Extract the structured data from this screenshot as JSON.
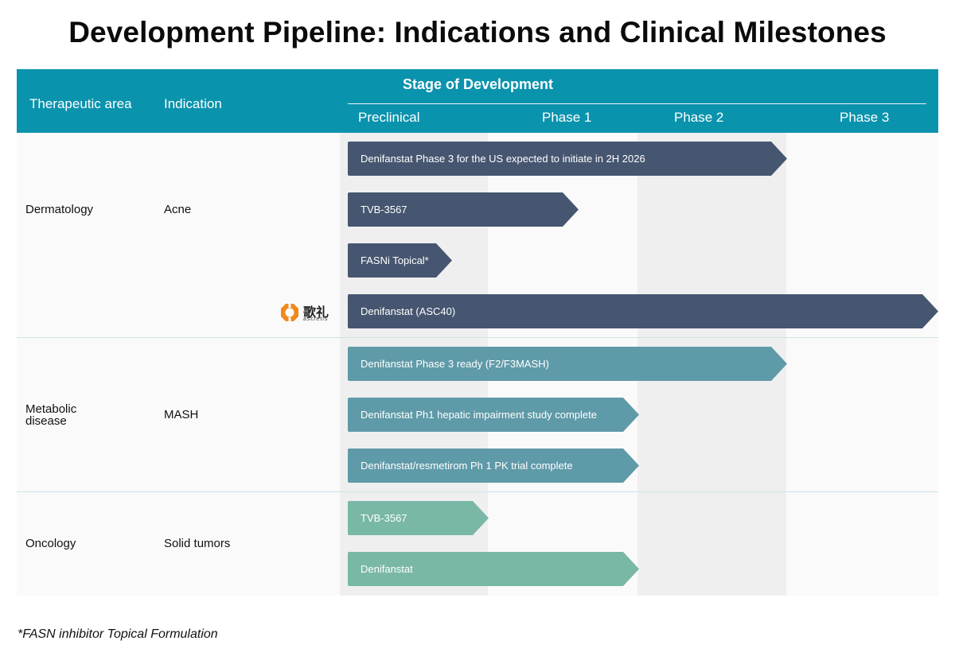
{
  "title": "Development Pipeline: Indications and Clinical Milestones",
  "header": {
    "therapeutic_area": "Therapeutic area",
    "indication": "Indication",
    "stage": "Stage of Development",
    "phases": [
      "Preclinical",
      "Phase 1",
      "Phase 2",
      "Phase 3"
    ]
  },
  "rows": [
    {
      "area": "Dermatology",
      "indication": "Acne"
    },
    {
      "area": "Metabolic disease",
      "indication": "MASH"
    },
    {
      "area": "Oncology",
      "indication": "Solid tumors"
    }
  ],
  "logo": {
    "chinese": "歌礼",
    "latin": "ascletis"
  },
  "programs": [
    {
      "label": "Denifanstat Phase 3 for the US expected to initiate in 2H 2026",
      "group": "Dermatology",
      "color": "#465670",
      "stage_reached": "Phase 2"
    },
    {
      "label": "TVB-3567",
      "group": "Dermatology",
      "color": "#465670",
      "stage_reached": "Phase 1"
    },
    {
      "label": "FASNi Topical*",
      "group": "Dermatology",
      "color": "#465670",
      "stage_reached": "Preclinical"
    },
    {
      "label": "Denifanstat (ASC40)",
      "group": "Dermatology",
      "color": "#465670",
      "stage_reached": "Phase 3"
    },
    {
      "label": "Denifanstat Phase 3 ready (F2/F3MASH)",
      "group": "Metabolic disease",
      "color": "#5f9aa8",
      "stage_reached": "Phase 2"
    },
    {
      "label": "Denifanstat Ph1 hepatic impairment study complete",
      "group": "Metabolic disease",
      "color": "#5f9aa8",
      "stage_reached": "Phase 1"
    },
    {
      "label": "Denifanstat/resmetirom Ph 1 PK trial complete",
      "group": "Metabolic disease",
      "color": "#5f9aa8",
      "stage_reached": "Phase 1"
    },
    {
      "label": "TVB-3567",
      "group": "Oncology",
      "color": "#79b8a6",
      "stage_reached": "Preclinical"
    },
    {
      "label": "Denifanstat",
      "group": "Oncology",
      "color": "#79b8a6",
      "stage_reached": "Phase 1"
    }
  ],
  "footnote": "*FASN inhibitor Topical Formulation"
}
